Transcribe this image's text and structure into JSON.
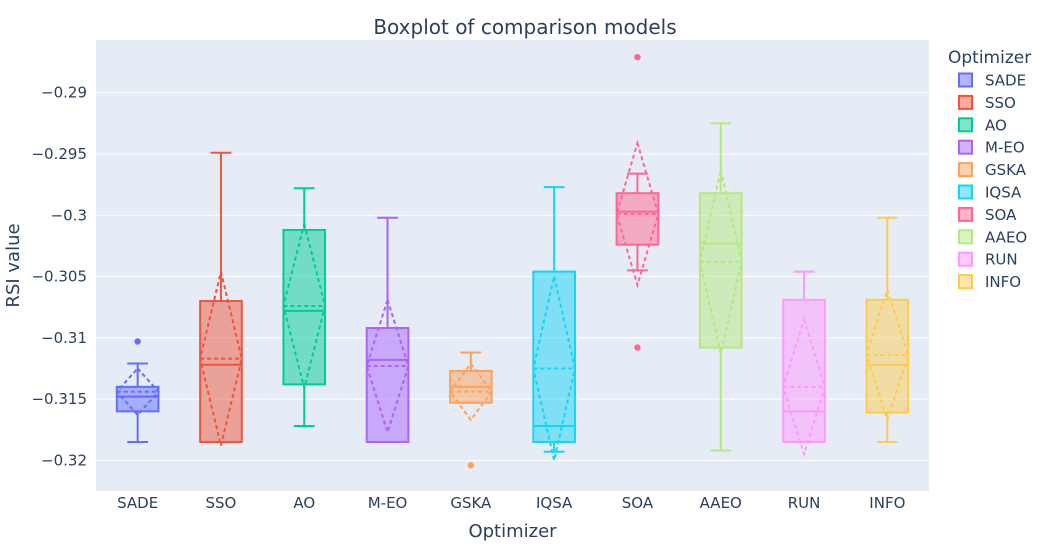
{
  "chart_data": {
    "type": "box",
    "title": "Boxplot of comparison models",
    "xlabel": "Optimizer",
    "ylabel": "RSI value",
    "ylim": [
      -0.3225,
      -0.2857
    ],
    "yticks": [
      -0.29,
      -0.295,
      -0.3,
      -0.305,
      -0.31,
      -0.315,
      -0.32
    ],
    "ytick_labels": [
      "−0.29",
      "−0.295",
      "−0.3",
      "−0.305",
      "−0.31",
      "−0.315",
      "−0.32"
    ],
    "grid": true,
    "legend": {
      "title": "Optimizer",
      "placement": "right"
    },
    "series": [
      {
        "name": "SADE",
        "color": "#636efa",
        "min": -0.3185,
        "q1": -0.316,
        "median": -0.3148,
        "q3": -0.314,
        "max": -0.3121,
        "mean": -0.3144,
        "sd": 0.0019,
        "outliers": [
          -0.3103
        ]
      },
      {
        "name": "SSO",
        "color": "#ef553b",
        "min": -0.3185,
        "q1": -0.3185,
        "median": -0.3122,
        "q3": -0.307,
        "max": -0.2949,
        "mean": -0.3117,
        "sd": 0.0071,
        "outliers": []
      },
      {
        "name": "AO",
        "color": "#00cc96",
        "min": -0.3172,
        "q1": -0.3138,
        "median": -0.3078,
        "q3": -0.3012,
        "max": -0.2978,
        "mean": -0.3074,
        "sd": 0.0067,
        "outliers": []
      },
      {
        "name": "M-EO",
        "color": "#ab63fa",
        "min": -0.3185,
        "q1": -0.3185,
        "median": -0.3118,
        "q3": -0.3092,
        "max": -0.3002,
        "mean": -0.3123,
        "sd": 0.0054,
        "outliers": []
      },
      {
        "name": "GSKA",
        "color": "#ffa15a",
        "min": -0.3153,
        "q1": -0.3153,
        "median": -0.314,
        "q3": -0.3127,
        "max": -0.3112,
        "mean": -0.3144,
        "sd": 0.0023,
        "outliers": [
          -0.3204
        ]
      },
      {
        "name": "IQSA",
        "color": "#19d3f3",
        "min": -0.3193,
        "q1": -0.3185,
        "median": -0.3172,
        "q3": -0.3046,
        "max": -0.2977,
        "mean": -0.3125,
        "sd": 0.0075,
        "outliers": []
      },
      {
        "name": "SOA",
        "color": "#ff6692",
        "min": -0.3045,
        "q1": -0.3024,
        "median": -0.2997,
        "q3": -0.2982,
        "max": -0.2966,
        "mean": -0.2999,
        "sd": 0.0058,
        "outliers": [
          -0.2871,
          -0.3108
        ]
      },
      {
        "name": "AAEO",
        "color": "#b6e880",
        "min": -0.3192,
        "q1": -0.3108,
        "median": -0.3023,
        "q3": -0.2982,
        "max": -0.2925,
        "mean": -0.3038,
        "sd": 0.0075,
        "outliers": []
      },
      {
        "name": "RUN",
        "color": "#ff97ff",
        "min": -0.3185,
        "q1": -0.3185,
        "median": -0.316,
        "q3": -0.3069,
        "max": -0.3046,
        "mean": -0.314,
        "sd": 0.0055,
        "outliers": []
      },
      {
        "name": "INFO",
        "color": "#fecb52",
        "min": -0.3185,
        "q1": -0.3161,
        "median": -0.3122,
        "q3": -0.3069,
        "max": -0.3002,
        "mean": -0.3114,
        "sd": 0.0053,
        "outliers": []
      }
    ]
  }
}
